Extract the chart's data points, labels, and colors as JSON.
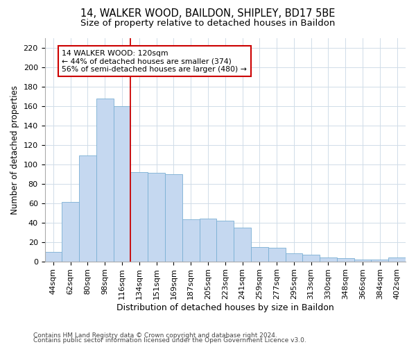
{
  "title": "14, WALKER WOOD, BAILDON, SHIPLEY, BD17 5BE",
  "subtitle": "Size of property relative to detached houses in Baildon",
  "xlabel": "Distribution of detached houses by size in Baildon",
  "ylabel": "Number of detached properties",
  "footnote1": "Contains HM Land Registry data © Crown copyright and database right 2024.",
  "footnote2": "Contains public sector information licensed under the Open Government Licence v3.0.",
  "categories": [
    "44sqm",
    "62sqm",
    "80sqm",
    "98sqm",
    "116sqm",
    "134sqm",
    "151sqm",
    "169sqm",
    "187sqm",
    "205sqm",
    "223sqm",
    "241sqm",
    "259sqm",
    "277sqm",
    "295sqm",
    "313sqm",
    "330sqm",
    "348sqm",
    "366sqm",
    "384sqm",
    "402sqm"
  ],
  "values": [
    10,
    61,
    109,
    168,
    160,
    92,
    91,
    90,
    43,
    44,
    42,
    35,
    15,
    14,
    8,
    7,
    4,
    3,
    2,
    2,
    4
  ],
  "bar_color": "#c5d8f0",
  "bar_edge_color": "#7aafd4",
  "vline_x": 4.5,
  "vline_color": "#cc0000",
  "annotation_text": "14 WALKER WOOD: 120sqm\n← 44% of detached houses are smaller (374)\n56% of semi-detached houses are larger (480) →",
  "annotation_box_color": "#ffffff",
  "annotation_box_edge": "#cc0000",
  "ylim": [
    0,
    230
  ],
  "yticks": [
    0,
    20,
    40,
    60,
    80,
    100,
    120,
    140,
    160,
    180,
    200,
    220
  ],
  "bg_color": "#ffffff",
  "plot_bg_color": "#ffffff",
  "grid_color": "#d0dce8",
  "title_fontsize": 10.5,
  "subtitle_fontsize": 9.5,
  "xlabel_fontsize": 9,
  "ylabel_fontsize": 8.5,
  "tick_fontsize": 8,
  "annot_fontsize": 7.8,
  "footnote_fontsize": 6.5
}
